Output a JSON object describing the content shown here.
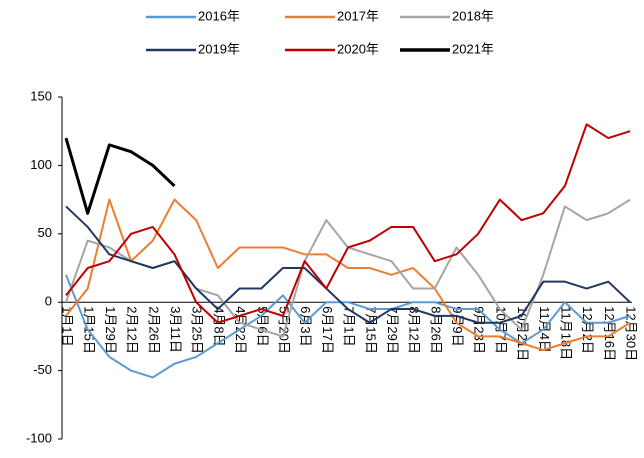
{
  "chart_data": {
    "type": "line",
    "categories": [
      "1月1日",
      "1月15日",
      "1月29日",
      "2月12日",
      "2月26日",
      "3月11日",
      "3月25日",
      "4月8日",
      "4月22日",
      "5月6日",
      "5月20日",
      "6月3日",
      "6月17日",
      "7月1日",
      "7月15日",
      "7月29日",
      "8月12日",
      "8月26日",
      "9月9日",
      "9月23日",
      "10月7日",
      "10月21日",
      "11月4日",
      "11月18日",
      "12月2日",
      "12月16日",
      "12月30日"
    ],
    "series": [
      {
        "name": "2016年",
        "color": "#5b9bd5",
        "values": [
          20,
          -20,
          -40,
          -50,
          -55,
          -45,
          -40,
          -30,
          -20,
          -10,
          5,
          -15,
          0,
          0,
          -5,
          -5,
          0,
          0,
          -5,
          -5,
          -20,
          -30,
          -20,
          0,
          -15,
          -15,
          -10
        ]
      },
      {
        "name": "2017年",
        "color": "#ed7d31",
        "values": [
          -10,
          10,
          75,
          30,
          45,
          75,
          60,
          25,
          40,
          40,
          40,
          35,
          35,
          25,
          25,
          20,
          25,
          10,
          -15,
          -25,
          -25,
          -30,
          -35,
          -30,
          -25,
          -25,
          -15
        ]
      },
      {
        "name": "2018年",
        "color": "#a5a5a5",
        "values": [
          0,
          45,
          40,
          30,
          25,
          30,
          10,
          5,
          -15,
          -20,
          -25,
          30,
          60,
          40,
          35,
          30,
          10,
          10,
          40,
          20,
          -5,
          -20,
          20,
          70,
          60,
          65,
          75
        ]
      },
      {
        "name": "2019年",
        "color": "#1f3864",
        "values": [
          70,
          55,
          35,
          30,
          25,
          30,
          10,
          -5,
          10,
          10,
          25,
          25,
          10,
          -5,
          -15,
          -5,
          -5,
          -10,
          -10,
          -15,
          -15,
          -10,
          15,
          15,
          10,
          15,
          0
        ]
      },
      {
        "name": "2020年",
        "color": "#c00000",
        "values": [
          5,
          25,
          30,
          50,
          55,
          35,
          0,
          -15,
          -10,
          -5,
          -10,
          30,
          10,
          40,
          45,
          55,
          55,
          30,
          35,
          50,
          75,
          60,
          65,
          85,
          130,
          120,
          125
        ]
      },
      {
        "name": "2021年",
        "color": "#000000",
        "values": [
          120,
          65,
          115,
          110,
          100,
          85,
          null,
          null,
          null,
          null,
          null,
          null,
          null,
          null,
          null,
          null,
          null,
          null,
          null,
          null,
          null,
          null,
          null,
          null,
          null,
          null,
          null
        ]
      }
    ],
    "ylim": [
      -100,
      150
    ],
    "yticks": [
      -100,
      -50,
      0,
      50,
      100,
      150
    ]
  }
}
